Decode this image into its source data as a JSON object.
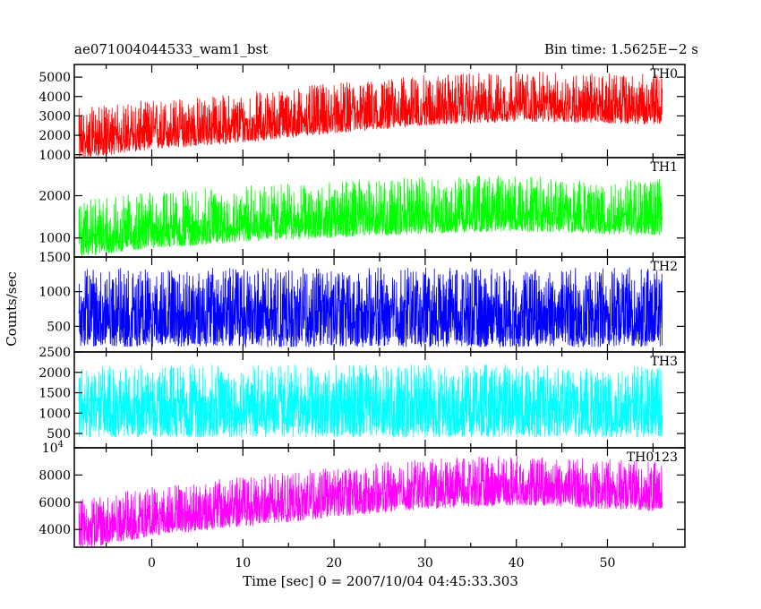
{
  "header": {
    "title": "ae071004044533_wam1_bst",
    "bin_time": "Bin time: 1.5625E−2 s"
  },
  "chart_data": {
    "type": "line",
    "title": "ae071004044533_wam1_bst",
    "subtitle": "Bin time: 1.5625E−2 s",
    "xlabel": "Time [sec] 0 = 2007/10/04 04:45:33.303",
    "ylabel": "Counts/sec",
    "xlim": [
      -8.5,
      58.5
    ],
    "xticks": [
      0,
      10,
      20,
      30,
      40,
      50
    ],
    "x_range_data": [
      -8,
      56
    ],
    "panels": [
      {
        "name": "TH0",
        "color": "#ff0000",
        "ylim": [
          850,
          5650
        ],
        "yticks": [
          1000,
          2000,
          3000,
          4000,
          5000
        ],
        "ytick_labels": [
          "1000",
          "2000",
          "3000",
          "4000",
          "5000"
        ],
        "trend": [
          {
            "x": -8,
            "y": 1700
          },
          {
            "x": 0,
            "y": 2150
          },
          {
            "x": 10,
            "y": 2500
          },
          {
            "x": 20,
            "y": 3000
          },
          {
            "x": 30,
            "y": 3400
          },
          {
            "x": 40,
            "y": 3600
          },
          {
            "x": 56,
            "y": 3450
          }
        ],
        "spread_low": 900,
        "spread_high": 1700
      },
      {
        "name": "TH1",
        "color": "#00ff00",
        "ylim": [
          550,
          2900
        ],
        "yticks": [
          1000,
          2000
        ],
        "ytick_labels": [
          "1000",
          "2000"
        ],
        "trend": [
          {
            "x": -8,
            "y": 1000
          },
          {
            "x": 0,
            "y": 1200
          },
          {
            "x": 10,
            "y": 1350
          },
          {
            "x": 20,
            "y": 1450
          },
          {
            "x": 30,
            "y": 1550
          },
          {
            "x": 40,
            "y": 1600
          },
          {
            "x": 56,
            "y": 1500
          }
        ],
        "spread_low": 450,
        "spread_high": 900
      },
      {
        "name": "TH2",
        "color": "#0000ff",
        "ylim": [
          130,
          1500
        ],
        "yticks": [
          500,
          1000,
          1500
        ],
        "ytick_labels": [
          "500",
          "1000",
          "1500"
        ],
        "trend": [
          {
            "x": -8,
            "y": 700
          },
          {
            "x": 56,
            "y": 700
          }
        ],
        "spread_low": 500,
        "spread_high": 650
      },
      {
        "name": "TH3",
        "color": "#00ffff",
        "ylim": [
          150,
          2500
        ],
        "yticks": [
          500,
          1000,
          1500,
          2000,
          2500
        ],
        "ytick_labels": [
          "500",
          "1000",
          "1500",
          "2000",
          "2500"
        ],
        "trend": [
          {
            "x": -8,
            "y": 1250
          },
          {
            "x": 56,
            "y": 1250
          }
        ],
        "spread_low": 850,
        "spread_high": 950
      },
      {
        "name": "TH0123",
        "color": "#ff00ff",
        "ylim": [
          2700,
          10000
        ],
        "yticks": [
          4000,
          6000,
          8000,
          10000
        ],
        "ytick_labels": [
          "4000",
          "6000",
          "8000",
          "10^4"
        ],
        "trend": [
          {
            "x": -8,
            "y": 4000
          },
          {
            "x": 0,
            "y": 5000
          },
          {
            "x": 10,
            "y": 5700
          },
          {
            "x": 20,
            "y": 6400
          },
          {
            "x": 30,
            "y": 7000
          },
          {
            "x": 40,
            "y": 7300
          },
          {
            "x": 56,
            "y": 6800
          }
        ],
        "spread_low": 1500,
        "spread_high": 2200
      }
    ],
    "grid": false,
    "legend": "none"
  }
}
